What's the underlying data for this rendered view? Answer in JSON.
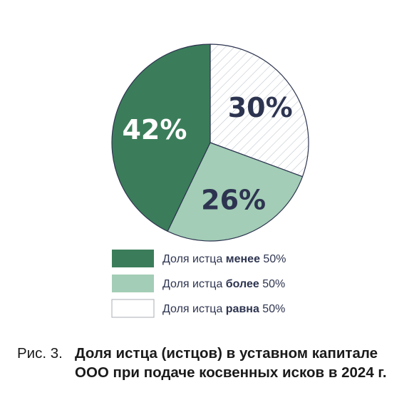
{
  "colors": {
    "dark_green": "#3b7d5a",
    "light_green": "#a3cdb6",
    "hatch": "#bcc4cc",
    "outline": "#2d3450",
    "label_light": "#ffffff",
    "label_dark": "#2d3450"
  },
  "chart_data": {
    "type": "pie",
    "title": "",
    "slices": [
      {
        "label": "Доля истца равна 50%",
        "value": 30,
        "value_label": "30%",
        "fill": "hatched",
        "color": "#ffffff"
      },
      {
        "label": "Доля истца более 50%",
        "value": 26,
        "value_label": "26%",
        "fill": "solid",
        "color": "#a3cdb6"
      },
      {
        "label": "Доля истца менее 50%",
        "value": 42,
        "value_label": "42%",
        "fill": "solid",
        "color": "#3b7d5a"
      }
    ],
    "start_angle_deg": 0,
    "direction": "clockwise",
    "legend": {
      "position": "bottom",
      "entries": [
        {
          "prefix": "Доля истца ",
          "bold": "менее",
          "suffix": " 50%",
          "color": "#3b7d5a",
          "fill": "solid"
        },
        {
          "prefix": "Доля истца ",
          "bold": "более",
          "suffix": " 50%",
          "color": "#a3cdb6",
          "fill": "solid"
        },
        {
          "prefix": "Доля истца ",
          "bold": "равна",
          "suffix": " 50%",
          "color": "#ffffff",
          "fill": "empty"
        }
      ]
    }
  },
  "caption": {
    "prefix": "Рис. 3.",
    "title": "Доля истца (истцов) в уставном капитале ООО при подаче косвенных исков в 2024 г."
  }
}
